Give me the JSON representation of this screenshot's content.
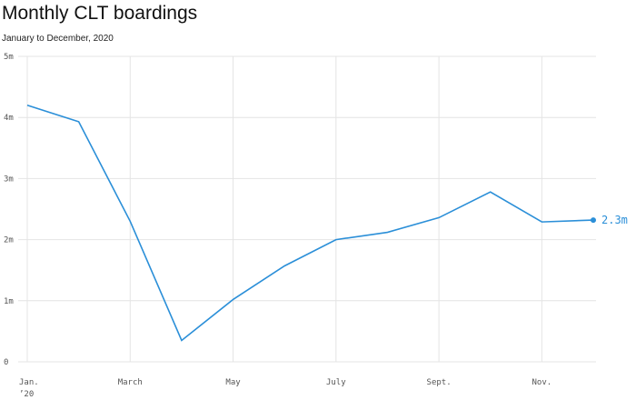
{
  "chart_data": {
    "type": "line",
    "title": "Monthly CLT boardings",
    "subtitle": "January to December, 2020",
    "categories": [
      "Jan.",
      null,
      "March",
      null,
      "May",
      null,
      "July",
      null,
      "Sept.",
      null,
      "Nov.",
      null
    ],
    "year_label": "’20",
    "series": [
      {
        "name": "Boardings",
        "color": "#2b8fd8",
        "values": [
          4.2,
          3.93,
          2.3,
          0.35,
          1.02,
          1.57,
          2.0,
          2.12,
          2.36,
          2.78,
          2.29,
          2.32
        ],
        "value_labels": [
          null,
          null,
          null,
          null,
          null,
          null,
          null,
          null,
          null,
          null,
          null,
          "2.3m"
        ]
      }
    ],
    "ylim": [
      0,
      5
    ],
    "yticks": [
      0,
      {
        "value": 1,
        "label": "1m"
      },
      {
        "value": 2,
        "label": "2m"
      },
      {
        "value": 3,
        "label": "3m"
      },
      {
        "value": 4,
        "label": "4m"
      },
      {
        "value": 5,
        "label": "5m"
      }
    ],
    "grid": true
  }
}
